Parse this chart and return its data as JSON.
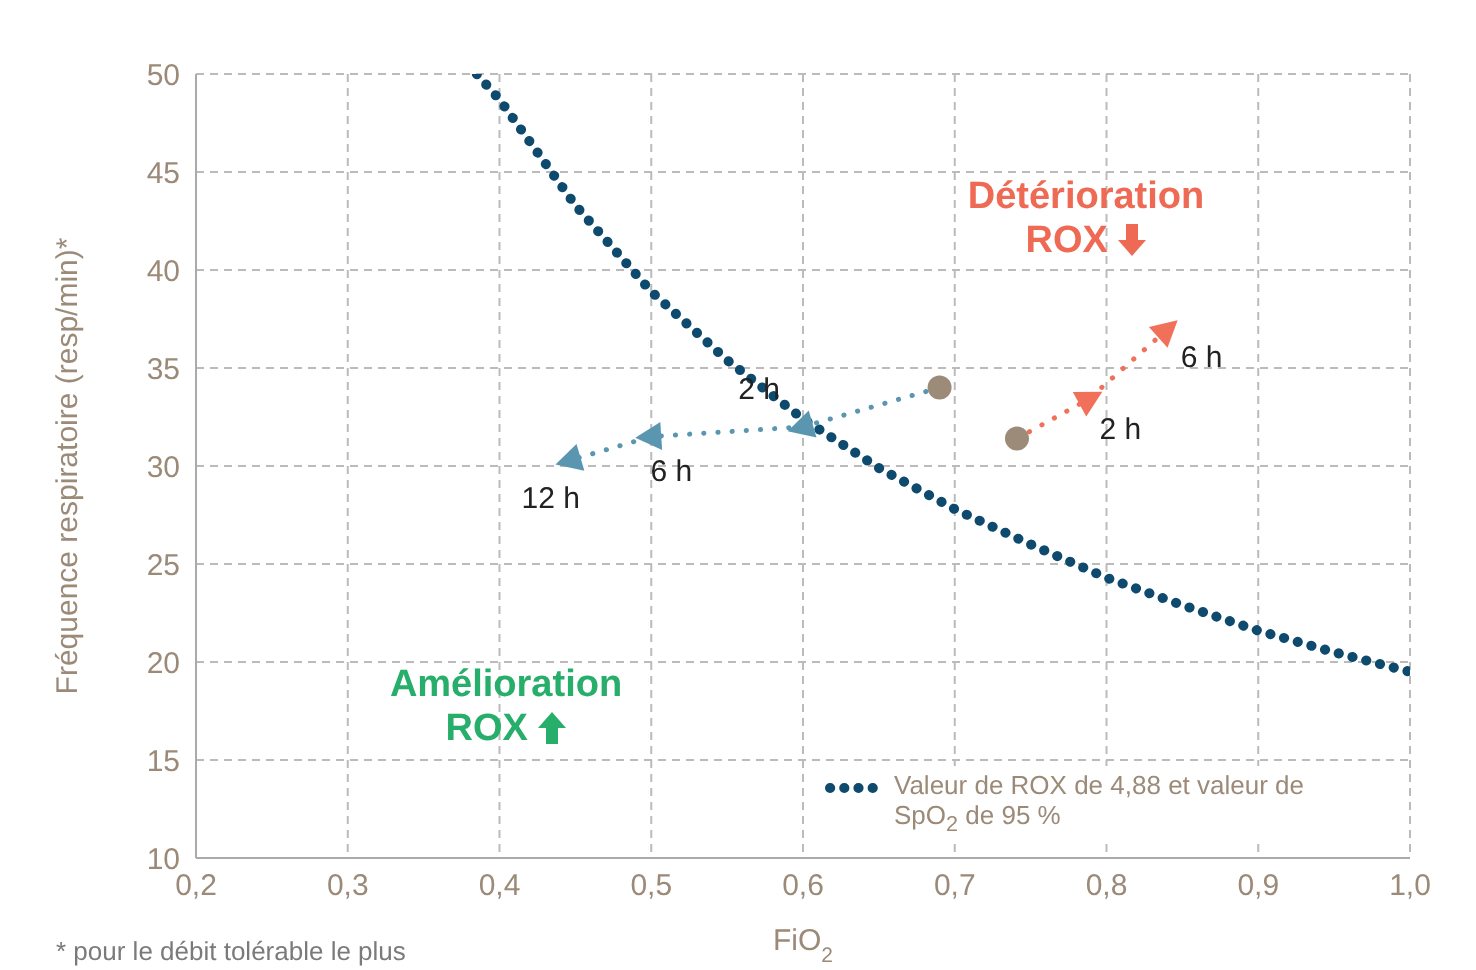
{
  "chart_data": {
    "type": "line",
    "xlabel": "FiO$_{2}$",
    "ylabel": "Fréquence respiratoire (resp/min)*",
    "xlim": [
      0.2,
      1.0
    ],
    "xticks": [
      {
        "value": 0.2,
        "label": "0,2"
      },
      {
        "value": 0.3,
        "label": "0,3"
      },
      {
        "value": 0.4,
        "label": "0,4"
      },
      {
        "value": 0.5,
        "label": "0,5"
      },
      {
        "value": 0.6,
        "label": "0,6"
      },
      {
        "value": 0.7,
        "label": "0,7"
      },
      {
        "value": 0.8,
        "label": "0,8"
      },
      {
        "value": 0.9,
        "label": "0,9"
      },
      {
        "value": 1.0,
        "label": "1,0"
      }
    ],
    "ylim": [
      10,
      50
    ],
    "yticks": [
      10,
      15,
      20,
      25,
      30,
      35,
      40,
      45,
      50
    ],
    "grid": true,
    "legend": "bottom right",
    "series": [
      {
        "name": "Valeur de ROX de 4,88 et valeur de SpO$_{2}$ de 95 %",
        "color": "#0d4a6e",
        "line_style": "dotted",
        "marker": "none",
        "x": [
          0.385,
          0.4,
          0.45,
          0.5,
          0.55,
          0.6,
          0.65,
          0.7,
          0.75,
          0.8,
          0.85,
          0.9,
          0.95,
          1.0
        ],
        "values": [
          50,
          48.7,
          43.3,
          38.9,
          35.4,
          32.4,
          29.9,
          27.8,
          26,
          24.3,
          22.9,
          21.6,
          20.5,
          19.5
        ]
      },
      {
        "color": "#5b96b0",
        "line_style": "dotted",
        "marker": "triangle",
        "x": [
          0.69,
          0.6,
          0.5,
          0.447
        ],
        "values": [
          34,
          32,
          31.5,
          30.3
        ]
      },
      {
        "color": "#f0705a",
        "line_style": "dotted",
        "marker": "triangle",
        "x": [
          0.741,
          0.788,
          0.839
        ],
        "values": [
          31.4,
          33.4,
          36.9
        ]
      },
      {
        "type": "scatter",
        "color": "#9b8b78",
        "marker": "circle",
        "x": [
          0.69,
          0.741
        ],
        "values": [
          34,
          31.4
        ]
      }
    ],
    "annotations": [
      {
        "text": "2 h",
        "x": 0.6,
        "y": 32
      },
      {
        "text": "6 h",
        "x": 0.5,
        "y": 31.5
      },
      {
        "text": "12 h",
        "x": 0.447,
        "y": 30.3
      },
      {
        "text": "2 h",
        "x": 0.788,
        "y": 33.4
      },
      {
        "text": "6 h",
        "x": 0.839,
        "y": 36.9
      },
      "Détérioration ROX",
      "Amélioration ROX",
      "* pour le débit tolérable le plus"
    ]
  }
}
